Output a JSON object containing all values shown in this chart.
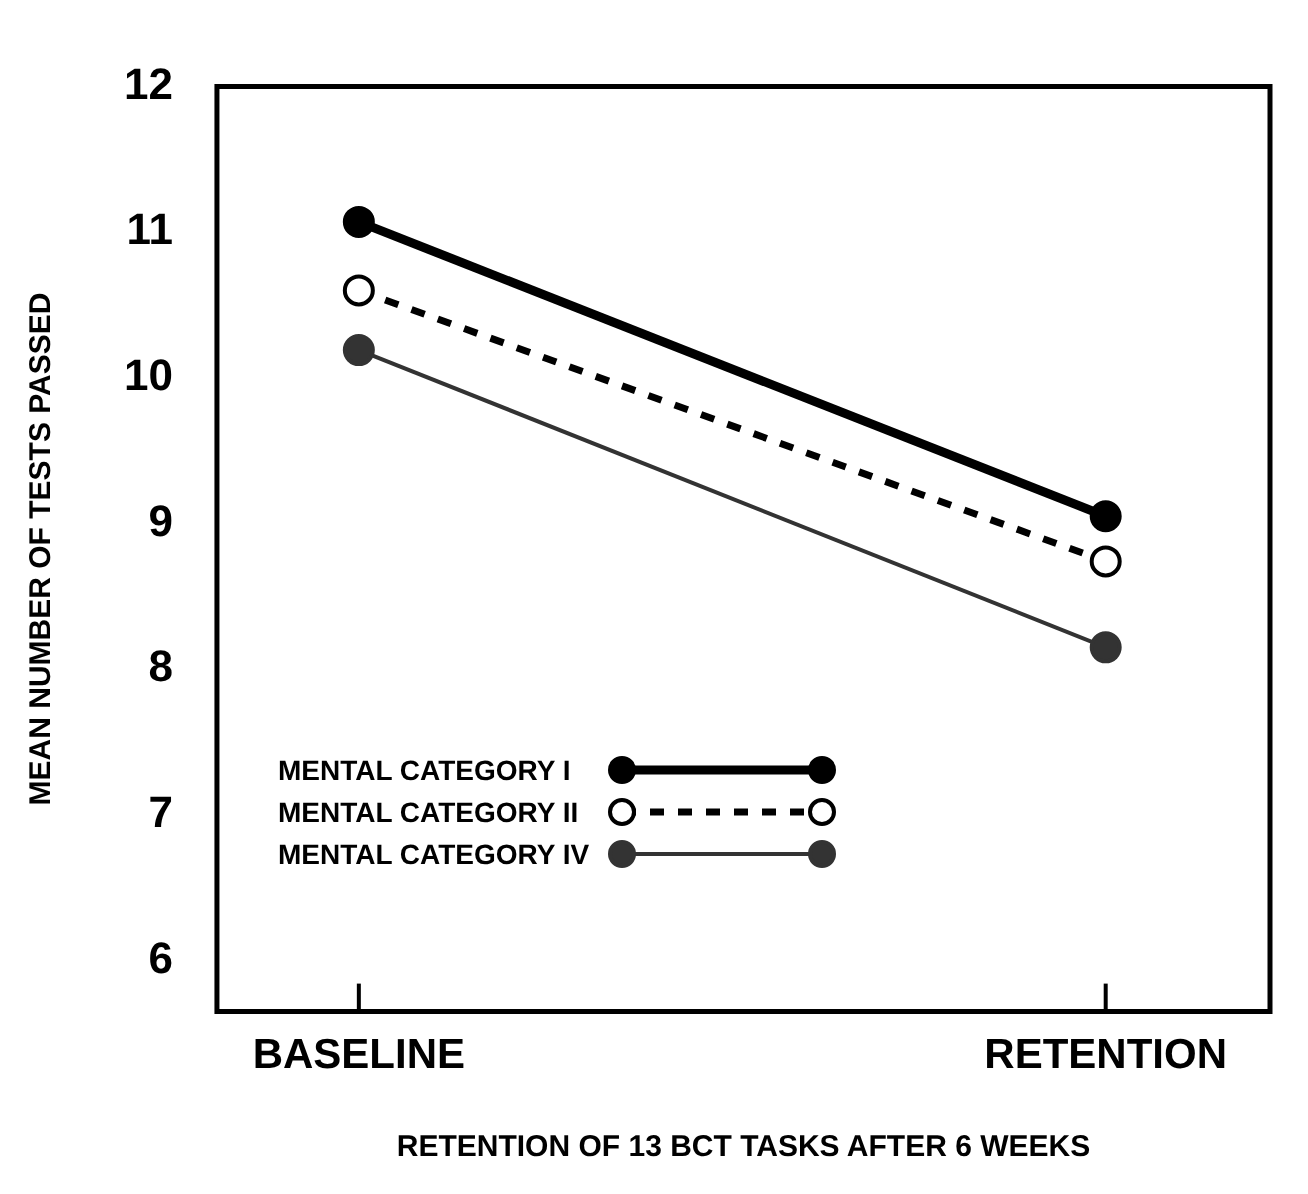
{
  "chart_data": {
    "type": "line",
    "xlabel": "RETENTION OF 13 BCT TASKS AFTER 6 WEEKS",
    "ylabel": "MEAN NUMBER OF TESTS PASSED",
    "categories": [
      "BASELINE",
      "RETENTION"
    ],
    "series": [
      {
        "name": "MENTAL CATEGORY I",
        "color": "#000000",
        "values": [
          11.07,
          9.05
        ],
        "line_style": "solid"
      },
      {
        "name": "MENTAL CATEGORY II",
        "color": "#000000",
        "values": [
          10.6,
          8.74
        ],
        "line_style": "dashed"
      },
      {
        "name": "MENTAL CATEGORY IV",
        "color": "#333333",
        "values": [
          10.19,
          8.15
        ],
        "line_style": "solid"
      }
    ],
    "ylim": [
      5.65,
      12
    ],
    "yticks": [
      6,
      7,
      8,
      9,
      10,
      11,
      12
    ],
    "grid": false,
    "legend": "bottom left",
    "marker": "circle"
  }
}
